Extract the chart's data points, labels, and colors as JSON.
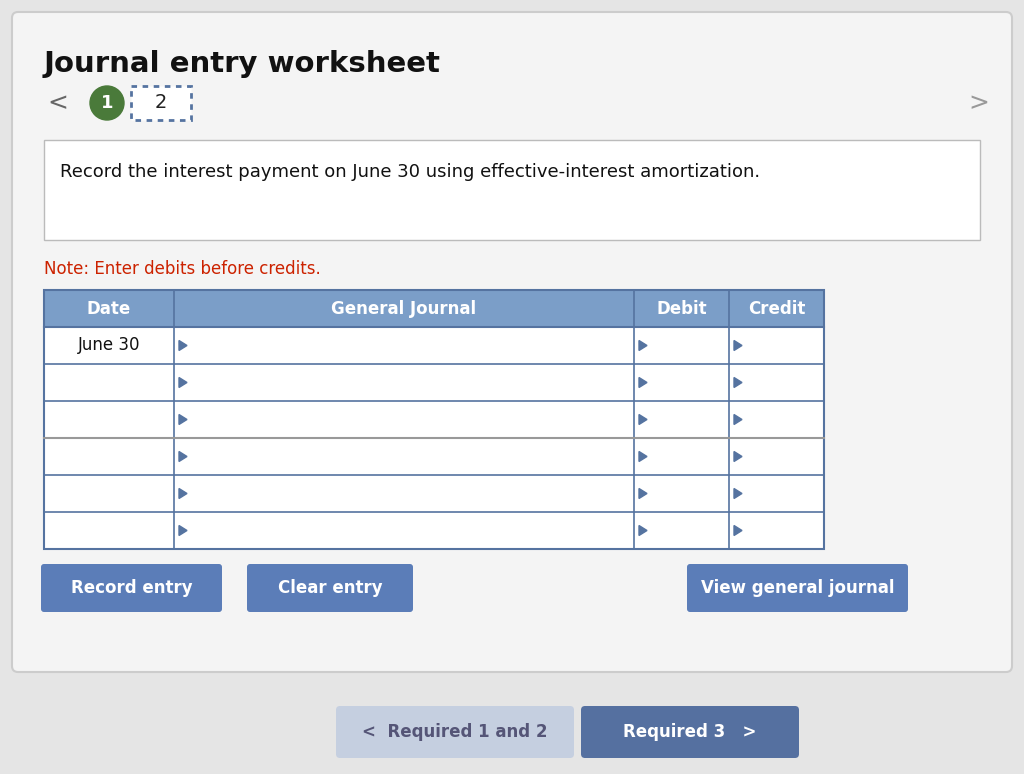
{
  "title": "Journal entry worksheet",
  "bg_color": "#e5e5e5",
  "panel_bg": "#f4f4f4",
  "white_box_bg": "#ffffff",
  "note_text": "Note: Enter debits before credits.",
  "note_color": "#cc2200",
  "instruction_text": "Record the interest payment on June 30 using effective-interest amortization.",
  "table_header_bg": "#7b9ec8",
  "table_header_text_color": "#ffffff",
  "table_border_color": "#5573a0",
  "col_headers": [
    "Date",
    "General Journal",
    "Debit",
    "Credit"
  ],
  "first_row_date": "June 30",
  "num_rows": 6,
  "nav_circle_color": "#4a7a3a",
  "nav_circle_text": "1",
  "nav_box_text": "2",
  "nav_box_border": "#5573a0",
  "btn_color": "#5b7db8",
  "btn_text_color": "#ffffff",
  "btn_labels": [
    "Record entry",
    "Clear entry",
    "View general journal"
  ],
  "bottom_btn_left_label": "<  Required 1 and 2",
  "bottom_btn_right_label": "Required 3   >",
  "bottom_btn_left_color": "#c5cfe0",
  "bottom_btn_right_color": "#5570a0",
  "arrow_left": "<",
  "arrow_right": ">"
}
